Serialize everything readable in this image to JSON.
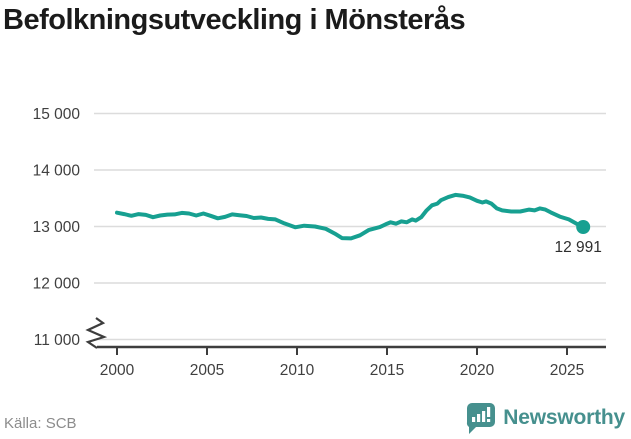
{
  "title": "Befolkningsutveckling i Mönsterås",
  "footer": {
    "source": "Källa: SCB",
    "brand": "Newsworthy"
  },
  "colors": {
    "line": "#17a091",
    "marker": "#17a091",
    "grid": "#dcdcdc",
    "axis": "#3d3d3d",
    "tick_label": "#3f3f3f",
    "annotation": "#2e2e2e",
    "title": "#1b1b1b",
    "source_text": "#8c8c8c",
    "brand_teal": "#46908e"
  },
  "chart_data": {
    "type": "line",
    "title": "Befolkningsutveckling i Mönsterås",
    "xlabel": "",
    "ylabel": "",
    "grid": "horizontal",
    "legend": "none",
    "axis_break_y": true,
    "ylim": [
      11000,
      15000
    ],
    "xlim": [
      1998.7,
      2027.2
    ],
    "xticks": [
      2000,
      2005,
      2010,
      2015,
      2020,
      2025
    ],
    "yticks": [
      {
        "label": "11 000",
        "value": 11000
      },
      {
        "label": "12 000",
        "value": 12000
      },
      {
        "label": "13 000",
        "value": 13000
      },
      {
        "label": "14 000",
        "value": 14000
      },
      {
        "label": "15 000",
        "value": 15000
      }
    ],
    "last_point_label": "12 991",
    "last_point": {
      "x": 2025.9,
      "y": 12991
    },
    "series": [
      {
        "name": "Befolkning i Mönsterås",
        "points": [
          [
            2000.0,
            13245
          ],
          [
            2000.4,
            13220
          ],
          [
            2000.8,
            13190
          ],
          [
            2001.2,
            13220
          ],
          [
            2001.6,
            13205
          ],
          [
            2002.0,
            13165
          ],
          [
            2002.4,
            13195
          ],
          [
            2002.8,
            13210
          ],
          [
            2003.2,
            13215
          ],
          [
            2003.6,
            13240
          ],
          [
            2004.0,
            13230
          ],
          [
            2004.4,
            13195
          ],
          [
            2004.8,
            13230
          ],
          [
            2005.2,
            13190
          ],
          [
            2005.6,
            13145
          ],
          [
            2006.0,
            13170
          ],
          [
            2006.4,
            13215
          ],
          [
            2006.8,
            13200
          ],
          [
            2007.2,
            13185
          ],
          [
            2007.6,
            13150
          ],
          [
            2008.0,
            13160
          ],
          [
            2008.4,
            13135
          ],
          [
            2008.8,
            13125
          ],
          [
            2009.3,
            13055
          ],
          [
            2009.9,
            12985
          ],
          [
            2010.4,
            13015
          ],
          [
            2011.0,
            13000
          ],
          [
            2011.6,
            12960
          ],
          [
            2012.1,
            12875
          ],
          [
            2012.5,
            12795
          ],
          [
            2013.0,
            12790
          ],
          [
            2013.5,
            12845
          ],
          [
            2014.0,
            12940
          ],
          [
            2014.6,
            12990
          ],
          [
            2015.0,
            13050
          ],
          [
            2015.2,
            13075
          ],
          [
            2015.5,
            13050
          ],
          [
            2015.8,
            13090
          ],
          [
            2016.1,
            13075
          ],
          [
            2016.4,
            13125
          ],
          [
            2016.6,
            13105
          ],
          [
            2016.9,
            13165
          ],
          [
            2017.2,
            13285
          ],
          [
            2017.5,
            13375
          ],
          [
            2017.8,
            13405
          ],
          [
            2018.0,
            13465
          ],
          [
            2018.4,
            13520
          ],
          [
            2018.8,
            13560
          ],
          [
            2019.2,
            13545
          ],
          [
            2019.6,
            13515
          ],
          [
            2020.0,
            13455
          ],
          [
            2020.3,
            13425
          ],
          [
            2020.5,
            13445
          ],
          [
            2020.8,
            13405
          ],
          [
            2021.1,
            13320
          ],
          [
            2021.4,
            13285
          ],
          [
            2021.9,
            13265
          ],
          [
            2022.4,
            13265
          ],
          [
            2022.9,
            13300
          ],
          [
            2023.2,
            13285
          ],
          [
            2023.5,
            13320
          ],
          [
            2023.8,
            13300
          ],
          [
            2024.1,
            13250
          ],
          [
            2024.6,
            13175
          ],
          [
            2025.1,
            13125
          ],
          [
            2025.5,
            13055
          ],
          [
            2025.9,
            12991
          ]
        ]
      }
    ]
  }
}
